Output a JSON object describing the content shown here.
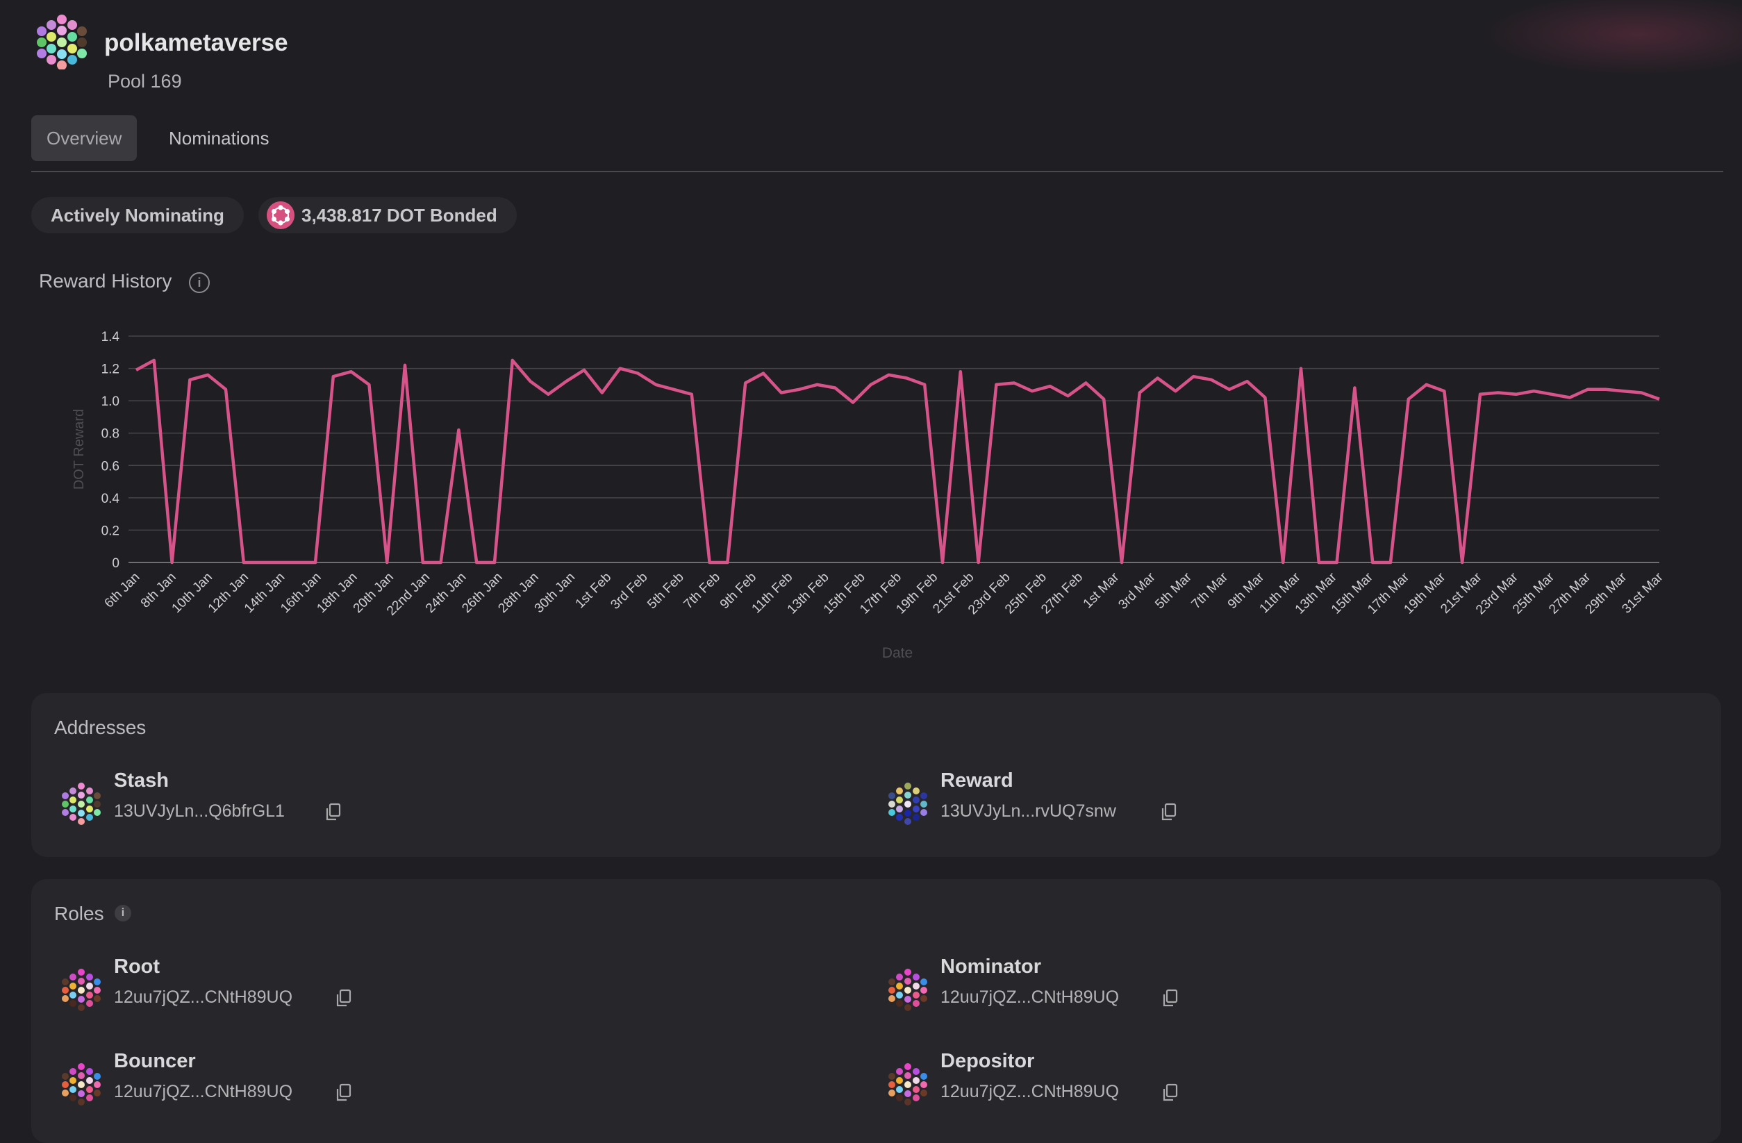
{
  "header": {
    "pool_name": "polkametaverse",
    "pool_id": "Pool 169",
    "logo_icon": "pool-identicon"
  },
  "tabs": [
    {
      "label": "Overview",
      "active": true
    },
    {
      "label": "Nominations",
      "active": false
    }
  ],
  "status": {
    "state": "Actively Nominating",
    "bonded": "3,438.817 DOT Bonded",
    "token_icon": "polkadot-icon"
  },
  "reward_history": {
    "title": "Reward History"
  },
  "chart_data": {
    "type": "line",
    "xlabel": "Date",
    "ylabel": "DOT Reward",
    "ylim": [
      0,
      1.4
    ],
    "yticks": [
      "0",
      "0.2",
      "0.4",
      "0.6",
      "0.8",
      "1.0",
      "1.2",
      "1.4"
    ],
    "grid": true,
    "legend": "none",
    "color": "#d6548a",
    "x_tick_labels": [
      "6th Jan",
      "8th Jan",
      "10th Jan",
      "12th Jan",
      "14th Jan",
      "16th Jan",
      "18th Jan",
      "20th Jan",
      "22nd Jan",
      "24th Jan",
      "26th Jan",
      "28th Jan",
      "30th Jan",
      "1st Feb",
      "3rd Feb",
      "5th Feb",
      "7th Feb",
      "9th Feb",
      "11th Feb",
      "13th Feb",
      "15th Feb",
      "17th Feb",
      "19th Feb",
      "21st Feb",
      "23rd Feb",
      "25th Feb",
      "27th Feb",
      "1st Mar",
      "3rd Mar",
      "5th Mar",
      "7th Mar",
      "9th Mar",
      "11th Mar",
      "13th Mar",
      "15th Mar",
      "17th Mar",
      "19th Mar",
      "21st Mar",
      "23rd Mar",
      "25th Mar",
      "27th Mar",
      "29th Mar",
      "31st Mar"
    ],
    "series": [
      {
        "values": [
          1.19,
          1.25,
          0,
          1.13,
          1.16,
          1.07,
          0,
          0,
          0,
          0,
          0,
          1.15,
          1.18,
          1.1,
          0,
          1.22,
          0,
          0,
          0.82,
          0,
          0,
          1.25,
          1.12,
          1.04,
          1.12,
          1.19,
          1.05,
          1.2,
          1.17,
          1.1,
          1.07,
          1.04,
          0,
          0,
          1.11,
          1.17,
          1.05,
          1.07,
          1.1,
          1.08,
          0.99,
          1.1,
          1.16,
          1.14,
          1.1,
          0,
          1.18,
          0,
          1.1,
          1.11,
          1.06,
          1.09,
          1.03,
          1.11,
          1.01,
          0,
          1.05,
          1.14,
          1.06,
          1.15,
          1.13,
          1.07,
          1.12,
          1.02,
          0,
          1.2,
          0,
          0,
          1.08,
          0,
          0,
          1.01,
          1.1,
          1.06,
          0,
          1.04,
          1.05,
          1.04,
          1.06,
          1.04,
          1.02,
          1.07,
          1.07,
          1.06,
          1.05,
          1.01
        ]
      }
    ]
  },
  "addresses": {
    "title": "Addresses",
    "items": [
      {
        "label": "Stash",
        "address": "13UVJyLn...Q6bfrGL1"
      },
      {
        "label": "Reward",
        "address": "13UVJyLn...rvUQ7snw"
      }
    ]
  },
  "roles": {
    "title": "Roles",
    "items": [
      {
        "label": "Root",
        "address": "12uu7jQZ...CNtH89UQ"
      },
      {
        "label": "Nominator",
        "address": "12uu7jQZ...CNtH89UQ"
      },
      {
        "label": "Bouncer",
        "address": "12uu7jQZ...CNtH89UQ"
      },
      {
        "label": "Depositor",
        "address": "12uu7jQZ...CNtH89UQ"
      }
    ]
  }
}
